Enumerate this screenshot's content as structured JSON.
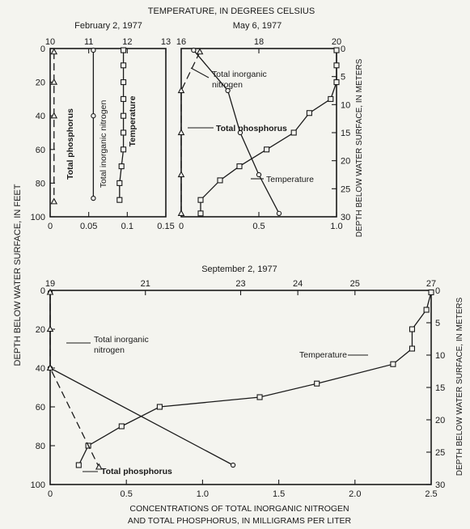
{
  "figure": {
    "top_axis_title": "TEMPERATURE, IN DEGREES CELSIUS",
    "left_axis_title": "DEPTH BELOW WATER SURFACE, IN FEET",
    "right_axis_title_top": "DEPTH BELOW WATER SURFACE, IN METERS",
    "right_axis_title_bottom": "DEPTH BELOW WATER SURFACE, IN METERS",
    "bottom_axis_title_line1": "CONCENTRATIONS OF TOTAL INORGANIC NITROGEN",
    "bottom_axis_title_line2": "AND TOTAL PHOSPHORUS, IN MILLIGRAMS PER LITER"
  },
  "chart_data": [
    {
      "type": "line",
      "title": "February 2, 1977",
      "xlabel": "",
      "x2label": "",
      "ylabel": "",
      "xlim": [
        0,
        0.15
      ],
      "x2lim": [
        10,
        13
      ],
      "ylim": [
        100,
        0
      ],
      "x_ticks": [
        "0",
        "0.05",
        "0.1",
        "0.15"
      ],
      "x2_ticks": [
        "10",
        "11",
        "12",
        "13"
      ],
      "y_ticks": [
        "0",
        "20",
        "40",
        "60",
        "80",
        "100"
      ],
      "y2_ticks": [],
      "series": [
        {
          "name": "Total phosphorus",
          "axis": "x",
          "marker": "triangle",
          "dash": true,
          "points": [
            [
              0.005,
              2
            ],
            [
              0.005,
              20
            ],
            [
              0.005,
              40
            ],
            [
              0.005,
              91
            ]
          ]
        },
        {
          "name": "Total inorganic nitrogen",
          "axis": "x",
          "marker": "circle",
          "dash": false,
          "points": [
            [
              0.056,
              1
            ],
            [
              0.056,
              40
            ],
            [
              0.056,
              89
            ]
          ]
        },
        {
          "name": "Temperature",
          "axis": "x2",
          "marker": "square",
          "dash": false,
          "points": [
            [
              11.9,
              1
            ],
            [
              11.9,
              10
            ],
            [
              11.9,
              20
            ],
            [
              11.9,
              30
            ],
            [
              11.9,
              40
            ],
            [
              11.9,
              50
            ],
            [
              11.9,
              60
            ],
            [
              11.85,
              70
            ],
            [
              11.8,
              80
            ],
            [
              11.8,
              90
            ]
          ]
        }
      ],
      "annotations": [
        "Total phosphorus",
        "Total inorganic nitrogen",
        "Temperature"
      ]
    },
    {
      "type": "line",
      "title": "May 6, 1977",
      "xlabel": "",
      "x2label": "",
      "ylabel": "",
      "xlim": [
        0,
        1.0
      ],
      "x2lim": [
        16,
        20
      ],
      "ylim": [
        30,
        0
      ],
      "x_ticks": [
        "0",
        "0.5",
        "1.0"
      ],
      "x2_ticks": [
        "16",
        "18",
        "20"
      ],
      "y_ticks": [],
      "y2_ticks": [
        "0",
        "5",
        "10",
        "15",
        "20",
        "25",
        "30"
      ],
      "series": [
        {
          "name": "Total inorganic nitrogen",
          "axis": "x",
          "marker": "circle",
          "dash": false,
          "points": [
            [
              0.08,
              0.3
            ],
            [
              0.3,
              7.5
            ],
            [
              0.38,
              15
            ],
            [
              0.5,
              22.5
            ],
            [
              0.63,
              29.4
            ]
          ]
        },
        {
          "name": "Total phosphorus",
          "axis": "x",
          "marker": "triangle",
          "dash": true,
          "points": [
            [
              0.12,
              0.6
            ],
            [
              0.0,
              7.5
            ],
            [
              0.0,
              15
            ],
            [
              0.0,
              22.5
            ],
            [
              0.0,
              29.4
            ]
          ]
        },
        {
          "name": "Temperature",
          "axis": "x2",
          "marker": "square",
          "dash": false,
          "points": [
            [
              20.0,
              0.3
            ],
            [
              20.0,
              3
            ],
            [
              20.0,
              6
            ],
            [
              19.85,
              9
            ],
            [
              19.3,
              11.5
            ],
            [
              18.9,
              15
            ],
            [
              18.2,
              18
            ],
            [
              17.5,
              21
            ],
            [
              17.0,
              23.5
            ],
            [
              16.5,
              27
            ],
            [
              16.5,
              29.4
            ]
          ]
        }
      ],
      "annotations": [
        "Total inorganic nitrogen",
        "Total phosphorus",
        "Temperature"
      ]
    },
    {
      "type": "line",
      "title": "September 2, 1977",
      "xlabel": "",
      "x2label": "",
      "ylabel": "",
      "xlim": [
        0,
        2.5
      ],
      "x2lim": [
        19,
        27
      ],
      "ylim": [
        100,
        0
      ],
      "x_ticks": [
        "0",
        "0.5",
        "1.0",
        "1.5",
        "2.0",
        "2.5"
      ],
      "x2_ticks": [
        "19",
        "21",
        "23",
        "24",
        "25",
        "27"
      ],
      "x2_tick_values": [
        19,
        21,
        23,
        24.2,
        25.4,
        27
      ],
      "y_ticks": [
        "0",
        "20",
        "40",
        "60",
        "80",
        "100"
      ],
      "y2_ticks": [
        "0",
        "5",
        "10",
        "15",
        "20",
        "25",
        "30"
      ],
      "series": [
        {
          "name": "Temperature",
          "axis": "x2",
          "marker": "square",
          "dash": false,
          "points": [
            [
              27.0,
              1
            ],
            [
              26.9,
              10
            ],
            [
              26.6,
              20
            ],
            [
              26.6,
              30
            ],
            [
              26.2,
              38
            ],
            [
              24.6,
              48
            ],
            [
              23.4,
              55
            ],
            [
              21.3,
              60
            ],
            [
              20.5,
              70
            ],
            [
              19.8,
              80
            ],
            [
              19.6,
              90
            ]
          ]
        },
        {
          "name": "Total inorganic nitrogen",
          "axis": "x",
          "marker": "circle",
          "dash": false,
          "points": [
            [
              0.0,
              1
            ],
            [
              0.0,
              40
            ],
            [
              1.2,
              90
            ]
          ]
        },
        {
          "name": "Total phosphorus",
          "axis": "x",
          "marker": "triangle",
          "dash": true,
          "points": [
            [
              0.0,
              1
            ],
            [
              0.0,
              20
            ],
            [
              0.0,
              40
            ],
            [
              0.32,
              91
            ]
          ]
        }
      ],
      "annotations": [
        "Total inorganic nitrogen",
        "Temperature",
        "Total phosphorus"
      ]
    }
  ]
}
